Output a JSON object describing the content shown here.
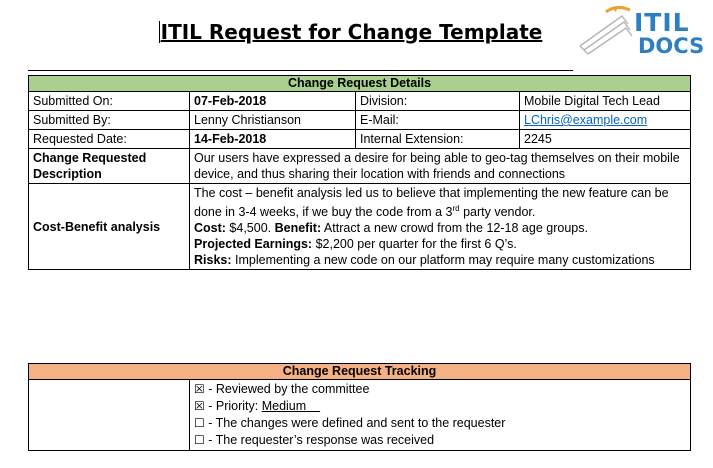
{
  "title": "ITIL Request for Change Template",
  "logo": {
    "line1": "ITIL",
    "line2": "DOCS"
  },
  "details": {
    "header": "Change Request Details",
    "submitted_on_label": "Submitted On:",
    "submitted_on_value": "07-Feb-2018",
    "division_label": "Division:",
    "division_value": "Mobile Digital Tech Lead",
    "submitted_by_label": "Submitted By:",
    "submitted_by_value": "Lenny Christianson",
    "email_label": "E-Mail:",
    "email_value": "LChris@example.com",
    "requested_date_label": "Requested Date:",
    "requested_date_value": "14-Feb-2018",
    "extension_label": "Internal Extension:",
    "extension_value": "2245",
    "description_label": "Change Requested Description",
    "description_value": "Our users have expressed a desire for being able to geo-tag themselves on their mobile device, and thus sharing their location with friends and connections",
    "cost_benefit_label": "Cost-Benefit analysis",
    "cost_benefit_intro_a": "The cost – benefit analysis led us to believe that implementing the new feature can be done in 3-4 weeks, if we buy the code from a 3",
    "cost_benefit_intro_sup": "rd",
    "cost_benefit_intro_b": " party vendor.",
    "cost_label": "Cost:",
    "cost_value": " $4,500. ",
    "benefit_label": "Benefit:",
    "benefit_value": " Attract a new crowd from the 12-18 age groups.",
    "earnings_label": "Projected Earnings:",
    "earnings_value": " $2,200 per quarter for the first 6 Q’s.",
    "risks_label": "Risks:",
    "risks_value": " Implementing a new code on our platform may require many customizations"
  },
  "tracking": {
    "header": "Change Request Tracking",
    "items": [
      {
        "box": "☒",
        "text": " - Reviewed by the committee"
      },
      {
        "box": "☒",
        "text": " - Priority: ",
        "value": "Medium",
        "value_suffix": "    "
      },
      {
        "box": "☐",
        "text": " - The changes were defined and sent to the requester"
      },
      {
        "box": "☐",
        "text": " - The requester’s response was received"
      }
    ]
  }
}
